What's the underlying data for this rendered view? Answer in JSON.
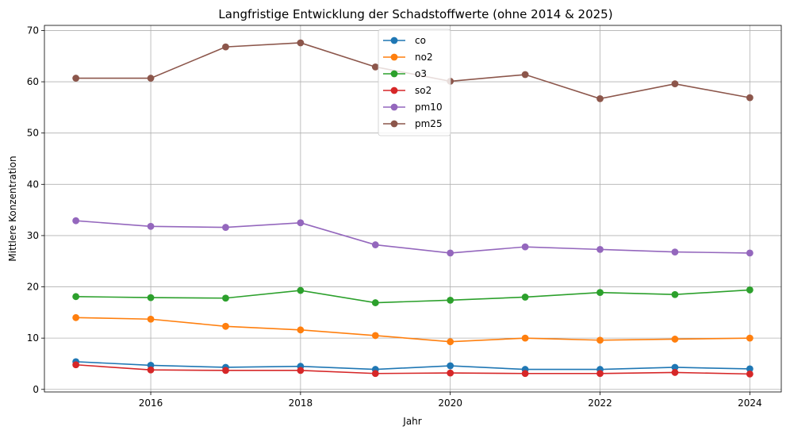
{
  "chart_data": {
    "type": "line",
    "title": "Langfristige Entwicklung der Schadstoffwerte (ohne 2014 & 2025)",
    "xlabel": "Jahr",
    "ylabel": "Mittlere Konzentration",
    "x": [
      2015,
      2016,
      2017,
      2018,
      2019,
      2020,
      2021,
      2022,
      2023,
      2024
    ],
    "xlim": [
      2014.58,
      2024.42
    ],
    "ylim": [
      -0.5,
      71
    ],
    "xticks": [
      2016,
      2018,
      2020,
      2022,
      2024
    ],
    "yticks": [
      0,
      10,
      20,
      30,
      40,
      50,
      60,
      70
    ],
    "grid": true,
    "legend_position": "top-center",
    "series": [
      {
        "name": "co",
        "color": "#1f77b4",
        "values": [
          5.4,
          4.7,
          4.3,
          4.5,
          3.9,
          4.6,
          3.9,
          3.9,
          4.3,
          4.0
        ]
      },
      {
        "name": "no2",
        "color": "#ff7f0e",
        "values": [
          14.0,
          13.7,
          12.3,
          11.6,
          10.5,
          9.3,
          10.0,
          9.6,
          9.8,
          10.0
        ]
      },
      {
        "name": "o3",
        "color": "#2ca02c",
        "values": [
          18.1,
          17.9,
          17.8,
          19.3,
          16.9,
          17.4,
          18.0,
          18.9,
          18.5,
          19.4
        ]
      },
      {
        "name": "so2",
        "color": "#d62728",
        "values": [
          4.8,
          3.8,
          3.7,
          3.7,
          3.1,
          3.2,
          3.1,
          3.1,
          3.3,
          3.0
        ]
      },
      {
        "name": "pm10",
        "color": "#9467bd",
        "values": [
          32.9,
          31.8,
          31.6,
          32.5,
          28.2,
          26.6,
          27.8,
          27.3,
          26.8,
          26.6
        ]
      },
      {
        "name": "pm25",
        "color": "#8c564b",
        "values": [
          60.7,
          60.7,
          66.8,
          67.6,
          62.9,
          60.1,
          61.4,
          56.7,
          59.6,
          56.9
        ]
      }
    ]
  }
}
